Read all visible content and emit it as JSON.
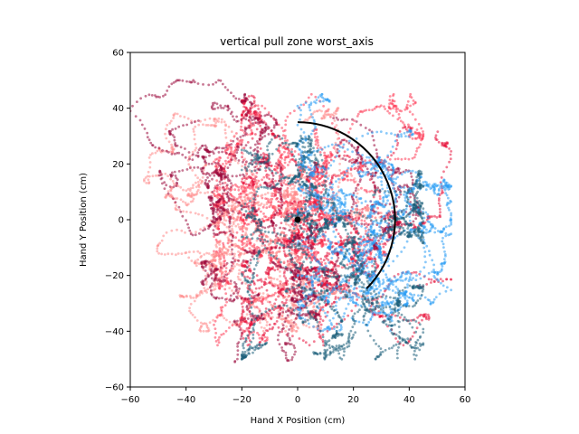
{
  "chart_data": {
    "type": "scatter",
    "title": "vertical pull zone worst_axis",
    "xlabel": "Hand X Position (cm)",
    "ylabel": "Hand Y Position (cm)",
    "xlim": [
      -60,
      60
    ],
    "ylim": [
      -60,
      60
    ],
    "xticks": [
      -60,
      -40,
      -20,
      0,
      20,
      40,
      60
    ],
    "yticks": [
      -60,
      -40,
      -20,
      0,
      20,
      40,
      60
    ],
    "grid": false,
    "legend": "none",
    "center_point": {
      "x": 0,
      "y": 0,
      "color": "#000000"
    },
    "reach_arc": {
      "center": [
        0,
        0
      ],
      "radius": 35,
      "start_point": [
        0,
        35
      ],
      "end_point": [
        24.7,
        -24.7
      ],
      "color": "#000000"
    },
    "series": [
      {
        "color": "#ff3b55",
        "x_range": [
          -30,
          45
        ],
        "y_range": [
          -45,
          45
        ]
      },
      {
        "color": "#e8143c",
        "x_range": [
          -20,
          55
        ],
        "y_range": [
          -45,
          45
        ]
      },
      {
        "color": "#ff8a8a",
        "x_range": [
          -55,
          30
        ],
        "y_range": [
          -40,
          40
        ]
      },
      {
        "color": "#9b0a3c",
        "x_range": [
          -60,
          60
        ],
        "y_range": [
          -60,
          50
        ]
      },
      {
        "color": "#2a9df4",
        "x_range": [
          0,
          55
        ],
        "y_range": [
          -40,
          45
        ]
      },
      {
        "color": "#1c5f7a",
        "x_range": [
          -20,
          45
        ],
        "y_range": [
          -50,
          30
        ]
      }
    ]
  }
}
